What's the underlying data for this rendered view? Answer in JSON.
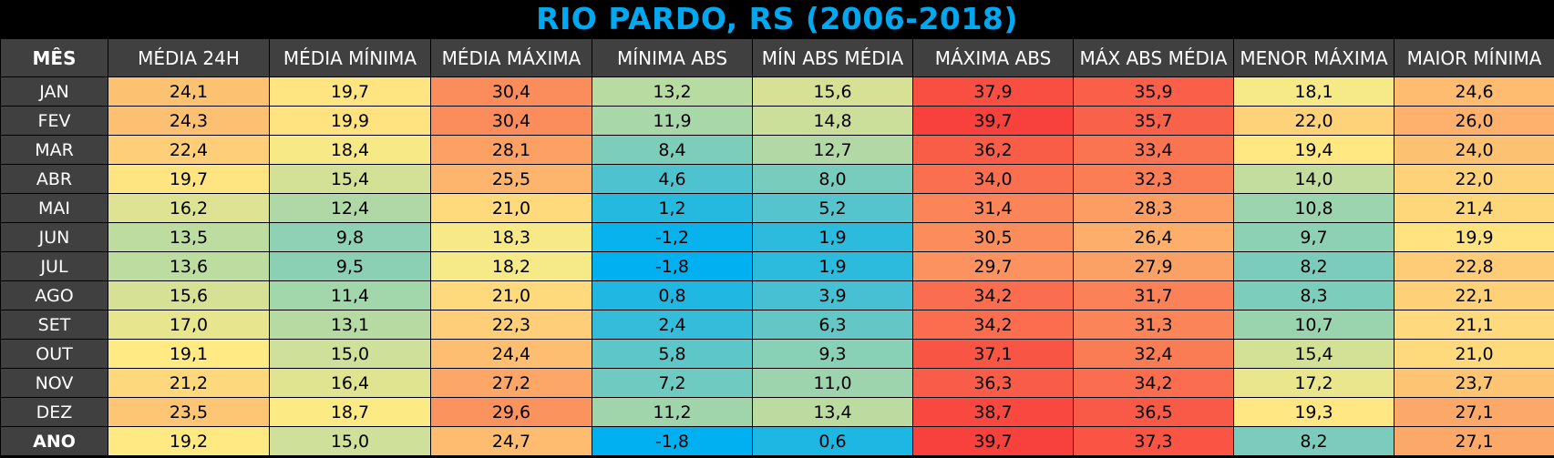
{
  "title": "RIO PARDO, RS (2006-2018)",
  "chart_data": {
    "type": "table",
    "title": "RIO PARDO, RS (2006-2018)",
    "columns": [
      "MÊS",
      "MÉDIA 24H",
      "MÉDIA MÍNIMA",
      "MÉDIA MÁXIMA",
      "MÍNIMA ABS",
      "MÍN ABS MÉDIA",
      "MÁXIMA ABS",
      "MÁX ABS MÉDIA",
      "MENOR MÁXIMA",
      "MAIOR MÍNIMA"
    ],
    "rows": [
      {
        "label": "JAN",
        "values": [
          "24,1",
          "19,7",
          "30,4",
          "13,2",
          "15,6",
          "37,9",
          "35,9",
          "18,1",
          "24,6"
        ]
      },
      {
        "label": "FEV",
        "values": [
          "24,3",
          "19,9",
          "30,4",
          "11,9",
          "14,8",
          "39,7",
          "35,7",
          "22,0",
          "26,0"
        ]
      },
      {
        "label": "MAR",
        "values": [
          "22,4",
          "18,4",
          "28,1",
          "8,4",
          "12,7",
          "36,2",
          "33,4",
          "19,4",
          "24,0"
        ]
      },
      {
        "label": "ABR",
        "values": [
          "19,7",
          "15,4",
          "25,5",
          "4,6",
          "8,0",
          "34,0",
          "32,3",
          "14,0",
          "22,0"
        ]
      },
      {
        "label": "MAI",
        "values": [
          "16,2",
          "12,4",
          "21,0",
          "1,2",
          "5,2",
          "31,4",
          "28,3",
          "10,8",
          "21,4"
        ]
      },
      {
        "label": "JUN",
        "values": [
          "13,5",
          "9,8",
          "18,3",
          "-1,2",
          "1,9",
          "30,5",
          "26,4",
          "9,7",
          "19,9"
        ]
      },
      {
        "label": "JUL",
        "values": [
          "13,6",
          "9,5",
          "18,2",
          "-1,8",
          "1,9",
          "29,7",
          "27,9",
          "8,2",
          "22,8"
        ]
      },
      {
        "label": "AGO",
        "values": [
          "15,6",
          "11,4",
          "21,0",
          "0,8",
          "3,9",
          "34,2",
          "31,7",
          "8,3",
          "22,1"
        ]
      },
      {
        "label": "SET",
        "values": [
          "17,0",
          "13,1",
          "22,3",
          "2,4",
          "6,3",
          "34,2",
          "31,3",
          "10,7",
          "21,1"
        ]
      },
      {
        "label": "OUT",
        "values": [
          "19,1",
          "15,0",
          "24,4",
          "5,8",
          "9,3",
          "37,1",
          "32,4",
          "15,4",
          "21,0"
        ]
      },
      {
        "label": "NOV",
        "values": [
          "21,2",
          "16,4",
          "27,2",
          "7,2",
          "11,0",
          "36,3",
          "34,2",
          "17,2",
          "23,7"
        ]
      },
      {
        "label": "DEZ",
        "values": [
          "23,5",
          "18,7",
          "29,6",
          "11,2",
          "13,4",
          "38,7",
          "36,5",
          "19,3",
          "27,1"
        ]
      },
      {
        "label": "ANO",
        "values": [
          "19,2",
          "15,0",
          "24,7",
          "-1,8",
          "0,6",
          "39,7",
          "37,3",
          "8,2",
          "27,1"
        ]
      }
    ],
    "color_scale": {
      "min": -1.8,
      "max": 39.7,
      "low_color": "#00b0f0",
      "mid_color": "#ffeb84",
      "high_color": "#f8403c"
    }
  }
}
